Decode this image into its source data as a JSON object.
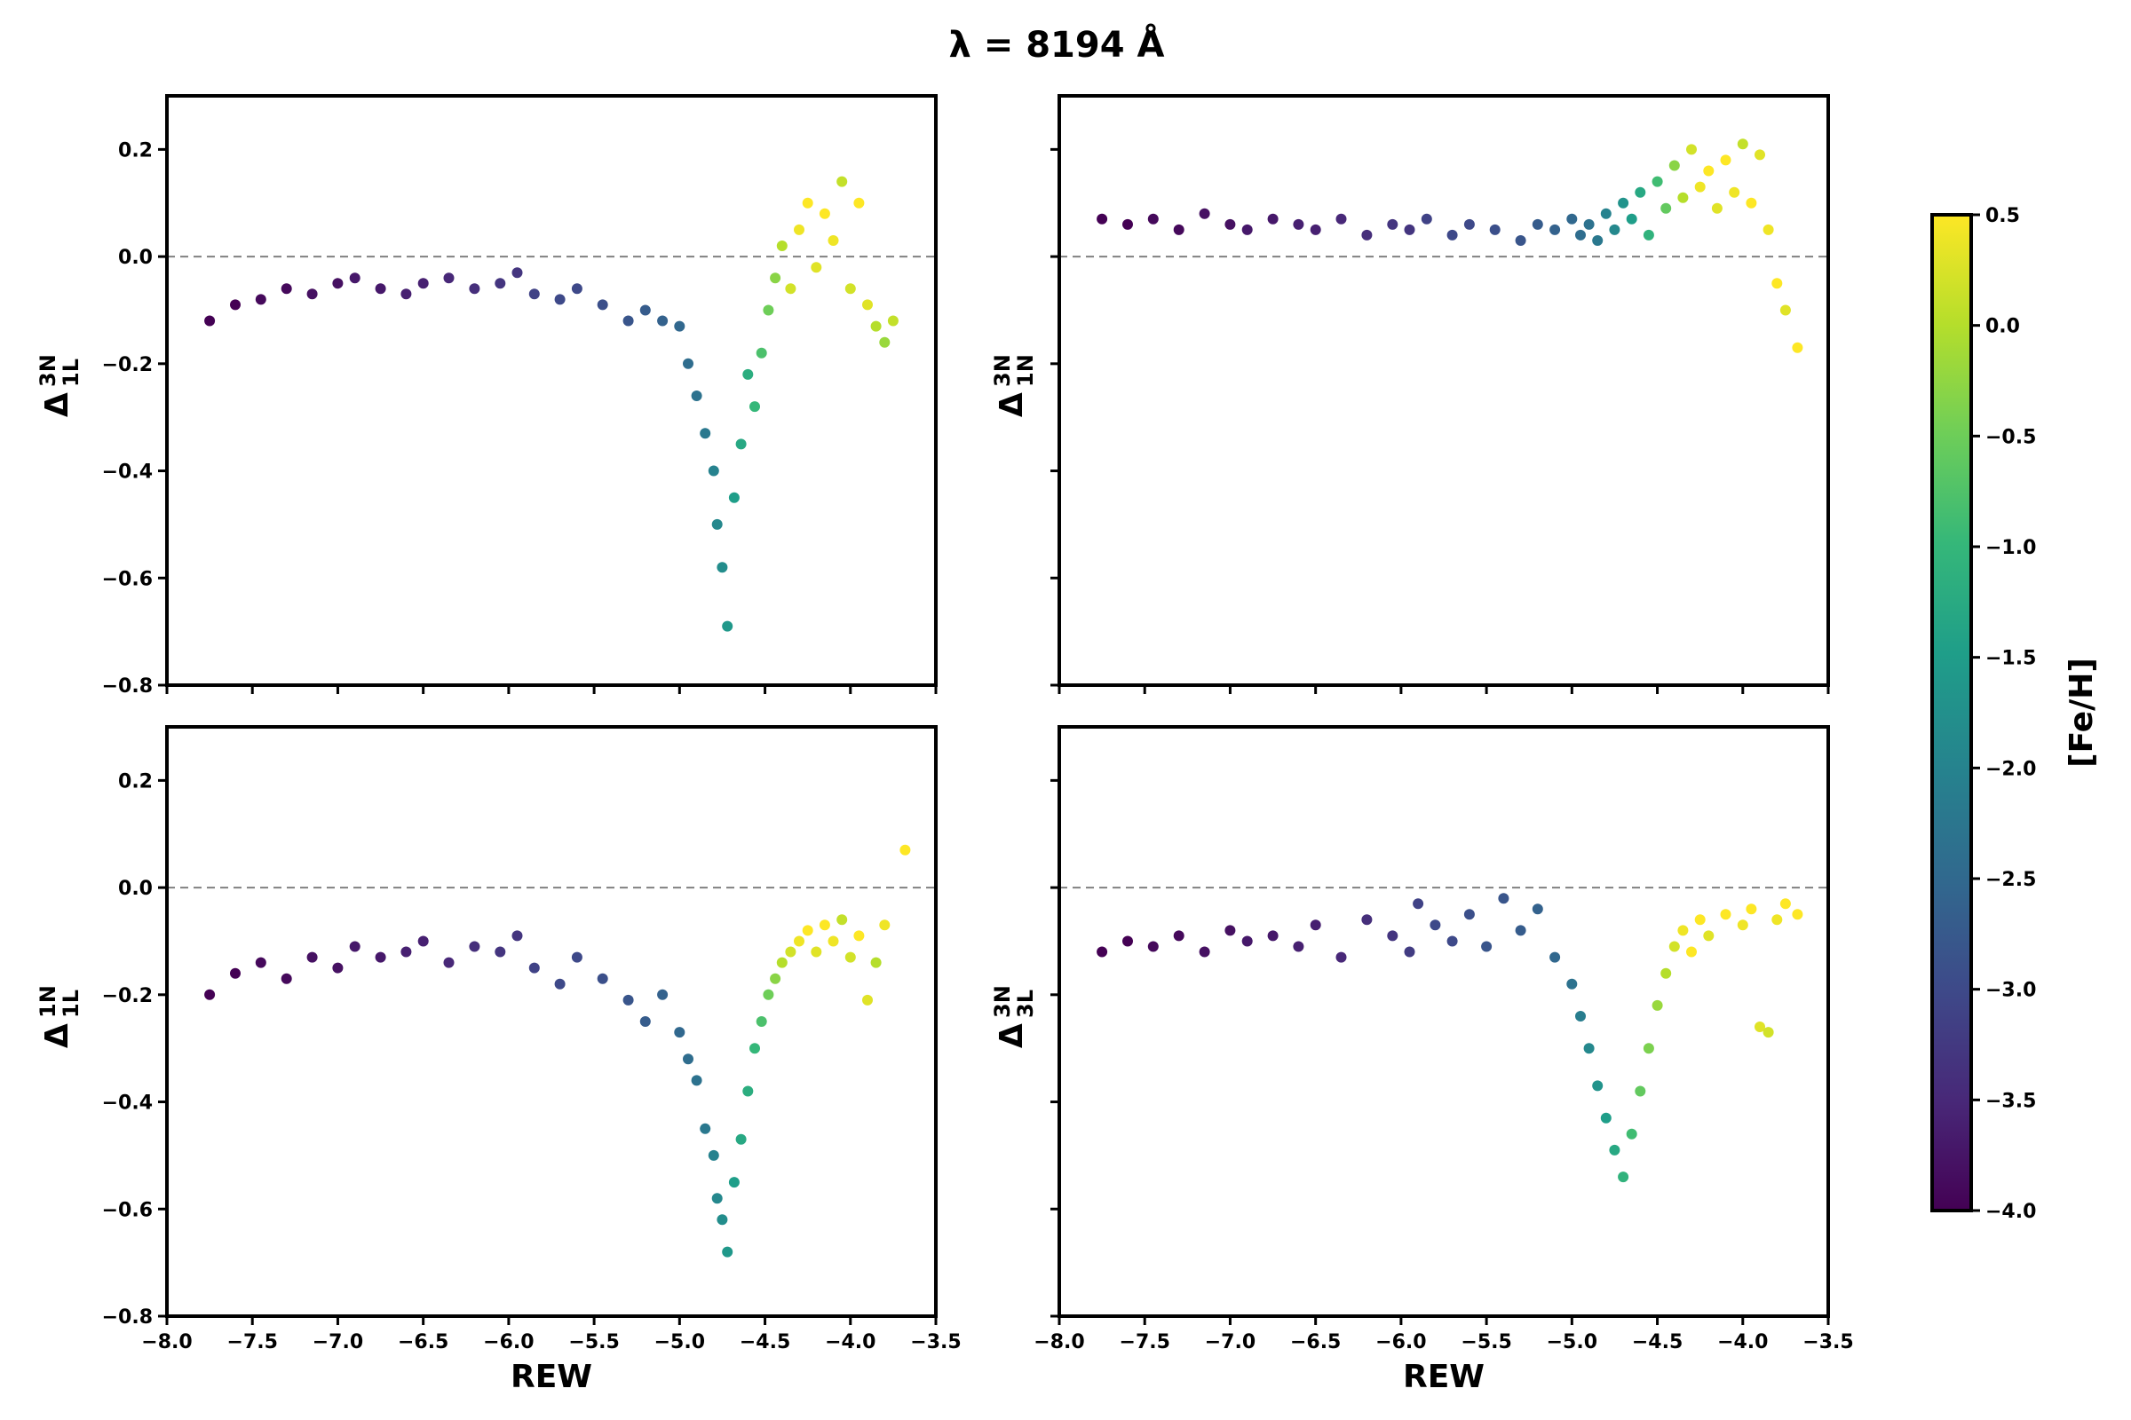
{
  "figure": {
    "title": "λ = 8194 Å"
  },
  "colorbar": {
    "label": "[Fe/H]",
    "range": [
      -4.0,
      0.5
    ],
    "ticks": [
      "0.5",
      "0.0",
      "−0.5",
      "−1.0",
      "−1.5",
      "−2.0",
      "−2.5",
      "−3.0",
      "−3.5",
      "−4.0"
    ],
    "colormap": "viridis",
    "colors": [
      "#440154",
      "#482878",
      "#3e4989",
      "#31688e",
      "#26828e",
      "#1f9e89",
      "#35b779",
      "#6ece58",
      "#b5de2b",
      "#fde725"
    ]
  },
  "chart_data": [
    {
      "type": "scatter",
      "panel": "top-left",
      "ylabel": {
        "base": "Δ",
        "sup": "3N",
        "sub": "1L"
      },
      "xlabel": "",
      "xlim": [
        -8.0,
        -3.5
      ],
      "ylim": [
        -0.8,
        0.3
      ],
      "x_ticks": [
        -8.0,
        -7.5,
        -7.0,
        -6.5,
        -6.0,
        -5.5,
        -5.0,
        -4.5,
        -4.0,
        -3.5
      ],
      "y_ticks": [
        "0.2",
        "0.0",
        "−0.2",
        "−0.4",
        "−0.6",
        "−0.8"
      ],
      "reference_line": 0.0,
      "color_by": "[Fe/H]",
      "points": [
        [
          -7.75,
          -0.12,
          -4.0
        ],
        [
          -7.6,
          -0.09,
          -4.0
        ],
        [
          -7.45,
          -0.08,
          -3.9
        ],
        [
          -7.3,
          -0.06,
          -3.9
        ],
        [
          -7.15,
          -0.07,
          -3.8
        ],
        [
          -7.0,
          -0.05,
          -3.8
        ],
        [
          -6.9,
          -0.04,
          -3.7
        ],
        [
          -6.75,
          -0.06,
          -3.7
        ],
        [
          -6.6,
          -0.07,
          -3.6
        ],
        [
          -6.5,
          -0.05,
          -3.6
        ],
        [
          -6.35,
          -0.04,
          -3.5
        ],
        [
          -6.2,
          -0.06,
          -3.4
        ],
        [
          -6.05,
          -0.05,
          -3.3
        ],
        [
          -5.95,
          -0.03,
          -3.3
        ],
        [
          -5.85,
          -0.07,
          -3.1
        ],
        [
          -5.7,
          -0.08,
          -3.0
        ],
        [
          -5.6,
          -0.06,
          -3.0
        ],
        [
          -5.45,
          -0.09,
          -2.9
        ],
        [
          -5.3,
          -0.12,
          -2.8
        ],
        [
          -5.2,
          -0.1,
          -2.7
        ],
        [
          -5.1,
          -0.12,
          -2.6
        ],
        [
          -5.0,
          -0.13,
          -2.5
        ],
        [
          -4.95,
          -0.2,
          -2.4
        ],
        [
          -4.9,
          -0.26,
          -2.3
        ],
        [
          -4.85,
          -0.33,
          -2.2
        ],
        [
          -4.8,
          -0.4,
          -2.0
        ],
        [
          -4.78,
          -0.5,
          -1.9
        ],
        [
          -4.75,
          -0.58,
          -1.8
        ],
        [
          -4.72,
          -0.69,
          -1.6
        ],
        [
          -4.68,
          -0.45,
          -1.5
        ],
        [
          -4.64,
          -0.35,
          -1.3
        ],
        [
          -4.6,
          -0.22,
          -1.2
        ],
        [
          -4.56,
          -0.28,
          -1.0
        ],
        [
          -4.52,
          -0.18,
          -0.8
        ],
        [
          -4.48,
          -0.1,
          -0.5
        ],
        [
          -4.44,
          -0.04,
          -0.3
        ],
        [
          -4.4,
          0.02,
          0.0
        ],
        [
          -4.35,
          -0.06,
          0.2
        ],
        [
          -4.3,
          0.05,
          0.4
        ],
        [
          -4.25,
          0.1,
          0.5
        ],
        [
          -4.2,
          -0.02,
          0.3
        ],
        [
          -4.15,
          0.08,
          0.5
        ],
        [
          -4.1,
          0.03,
          0.4
        ],
        [
          -4.05,
          0.14,
          0.1
        ],
        [
          -4.0,
          -0.06,
          0.2
        ],
        [
          -3.95,
          0.1,
          0.5
        ],
        [
          -3.9,
          -0.09,
          0.3
        ],
        [
          -3.85,
          -0.13,
          0.0
        ],
        [
          -3.8,
          -0.16,
          -0.2
        ],
        [
          -3.75,
          -0.12,
          0.1
        ]
      ]
    },
    {
      "type": "scatter",
      "panel": "top-right",
      "ylabel": {
        "base": "Δ",
        "sup": "3N",
        "sub": "1N"
      },
      "xlabel": "",
      "xlim": [
        -8.0,
        -3.5
      ],
      "ylim": [
        -0.8,
        0.3
      ],
      "x_ticks": [
        -8.0,
        -7.5,
        -7.0,
        -6.5,
        -6.0,
        -5.5,
        -5.0,
        -4.5,
        -4.0,
        -3.5
      ],
      "reference_line": 0.0,
      "color_by": "[Fe/H]",
      "points": [
        [
          -7.75,
          0.07,
          -4.0
        ],
        [
          -7.6,
          0.06,
          -4.0
        ],
        [
          -7.45,
          0.07,
          -3.9
        ],
        [
          -7.3,
          0.05,
          -3.9
        ],
        [
          -7.15,
          0.08,
          -3.8
        ],
        [
          -7.0,
          0.06,
          -3.8
        ],
        [
          -6.9,
          0.05,
          -3.7
        ],
        [
          -6.75,
          0.07,
          -3.7
        ],
        [
          -6.6,
          0.06,
          -3.6
        ],
        [
          -6.5,
          0.05,
          -3.6
        ],
        [
          -6.35,
          0.07,
          -3.5
        ],
        [
          -6.2,
          0.04,
          -3.4
        ],
        [
          -6.05,
          0.06,
          -3.3
        ],
        [
          -5.95,
          0.05,
          -3.3
        ],
        [
          -5.85,
          0.07,
          -3.1
        ],
        [
          -5.7,
          0.04,
          -3.0
        ],
        [
          -5.6,
          0.06,
          -3.0
        ],
        [
          -5.45,
          0.05,
          -2.9
        ],
        [
          -5.3,
          0.03,
          -2.8
        ],
        [
          -5.2,
          0.06,
          -2.7
        ],
        [
          -5.1,
          0.05,
          -2.6
        ],
        [
          -5.0,
          0.07,
          -2.5
        ],
        [
          -4.95,
          0.04,
          -2.4
        ],
        [
          -4.9,
          0.06,
          -2.3
        ],
        [
          -4.85,
          0.03,
          -2.2
        ],
        [
          -4.8,
          0.08,
          -2.0
        ],
        [
          -4.75,
          0.05,
          -1.9
        ],
        [
          -4.7,
          0.1,
          -1.7
        ],
        [
          -4.65,
          0.07,
          -1.5
        ],
        [
          -4.6,
          0.12,
          -1.3
        ],
        [
          -4.55,
          0.04,
          -1.1
        ],
        [
          -4.5,
          0.14,
          -0.9
        ],
        [
          -4.45,
          0.09,
          -0.6
        ],
        [
          -4.4,
          0.17,
          -0.3
        ],
        [
          -4.35,
          0.11,
          0.0
        ],
        [
          -4.3,
          0.2,
          0.2
        ],
        [
          -4.25,
          0.13,
          0.4
        ],
        [
          -4.2,
          0.16,
          0.5
        ],
        [
          -4.15,
          0.09,
          0.3
        ],
        [
          -4.1,
          0.18,
          0.5
        ],
        [
          -4.05,
          0.12,
          0.4
        ],
        [
          -4.0,
          0.21,
          0.1
        ],
        [
          -3.95,
          0.1,
          0.5
        ],
        [
          -3.9,
          0.19,
          0.3
        ],
        [
          -3.85,
          0.05,
          0.4
        ],
        [
          -3.8,
          -0.05,
          0.5
        ],
        [
          -3.75,
          -0.1,
          0.3
        ],
        [
          -3.68,
          -0.17,
          0.5
        ]
      ]
    },
    {
      "type": "scatter",
      "panel": "bottom-left",
      "ylabel": {
        "base": "Δ",
        "sup": "1N",
        "sub": "1L"
      },
      "xlabel": "REW",
      "xlim": [
        -8.0,
        -3.5
      ],
      "ylim": [
        -0.8,
        0.3
      ],
      "x_ticks": [
        -8.0,
        -7.5,
        -7.0,
        -6.5,
        -6.0,
        -5.5,
        -5.0,
        -4.5,
        -4.0,
        -3.5
      ],
      "x_tick_labels": [
        "−8.0",
        "−7.5",
        "−7.0",
        "−6.5",
        "−6.0",
        "−5.5",
        "−5.0",
        "−4.5",
        "−4.0",
        "−3.5"
      ],
      "y_ticks": [
        "0.2",
        "0.0",
        "−0.2",
        "−0.4",
        "−0.6",
        "−0.8"
      ],
      "reference_line": 0.0,
      "color_by": "[Fe/H]",
      "points": [
        [
          -7.75,
          -0.2,
          -4.0
        ],
        [
          -7.6,
          -0.16,
          -4.0
        ],
        [
          -7.45,
          -0.14,
          -3.9
        ],
        [
          -7.3,
          -0.17,
          -3.9
        ],
        [
          -7.15,
          -0.13,
          -3.8
        ],
        [
          -7.0,
          -0.15,
          -3.8
        ],
        [
          -6.9,
          -0.11,
          -3.7
        ],
        [
          -6.75,
          -0.13,
          -3.7
        ],
        [
          -6.6,
          -0.12,
          -3.6
        ],
        [
          -6.5,
          -0.1,
          -3.6
        ],
        [
          -6.35,
          -0.14,
          -3.5
        ],
        [
          -6.2,
          -0.11,
          -3.4
        ],
        [
          -6.05,
          -0.12,
          -3.3
        ],
        [
          -5.95,
          -0.09,
          -3.3
        ],
        [
          -5.85,
          -0.15,
          -3.1
        ],
        [
          -5.7,
          -0.18,
          -3.0
        ],
        [
          -5.6,
          -0.13,
          -3.0
        ],
        [
          -5.45,
          -0.17,
          -2.9
        ],
        [
          -5.3,
          -0.21,
          -2.8
        ],
        [
          -5.2,
          -0.25,
          -2.7
        ],
        [
          -5.1,
          -0.2,
          -2.6
        ],
        [
          -5.0,
          -0.27,
          -2.5
        ],
        [
          -4.95,
          -0.32,
          -2.4
        ],
        [
          -4.9,
          -0.36,
          -2.3
        ],
        [
          -4.85,
          -0.45,
          -2.2
        ],
        [
          -4.8,
          -0.5,
          -2.0
        ],
        [
          -4.78,
          -0.58,
          -1.9
        ],
        [
          -4.75,
          -0.62,
          -1.8
        ],
        [
          -4.72,
          -0.68,
          -1.6
        ],
        [
          -4.68,
          -0.55,
          -1.5
        ],
        [
          -4.64,
          -0.47,
          -1.3
        ],
        [
          -4.6,
          -0.38,
          -1.2
        ],
        [
          -4.56,
          -0.3,
          -1.0
        ],
        [
          -4.52,
          -0.25,
          -0.8
        ],
        [
          -4.48,
          -0.2,
          -0.5
        ],
        [
          -4.44,
          -0.17,
          -0.3
        ],
        [
          -4.4,
          -0.14,
          0.0
        ],
        [
          -4.35,
          -0.12,
          0.2
        ],
        [
          -4.3,
          -0.1,
          0.4
        ],
        [
          -4.25,
          -0.08,
          0.5
        ],
        [
          -4.2,
          -0.12,
          0.3
        ],
        [
          -4.15,
          -0.07,
          0.5
        ],
        [
          -4.1,
          -0.1,
          0.4
        ],
        [
          -4.05,
          -0.06,
          0.1
        ],
        [
          -4.0,
          -0.13,
          0.2
        ],
        [
          -3.95,
          -0.09,
          0.5
        ],
        [
          -3.9,
          -0.21,
          0.3
        ],
        [
          -3.85,
          -0.14,
          0.0
        ],
        [
          -3.8,
          -0.07,
          0.4
        ],
        [
          -3.68,
          0.07,
          0.5
        ]
      ]
    },
    {
      "type": "scatter",
      "panel": "bottom-right",
      "ylabel": {
        "base": "Δ",
        "sup": "3N",
        "sub": "3L"
      },
      "xlabel": "REW",
      "xlim": [
        -8.0,
        -3.5
      ],
      "ylim": [
        -0.8,
        0.3
      ],
      "x_ticks": [
        -8.0,
        -7.5,
        -7.0,
        -6.5,
        -6.0,
        -5.5,
        -5.0,
        -4.5,
        -4.0,
        -3.5
      ],
      "x_tick_labels": [
        "−8.0",
        "−7.5",
        "−7.0",
        "−6.5",
        "−6.0",
        "−5.5",
        "−5.0",
        "−4.5",
        "−4.0",
        "−3.5"
      ],
      "reference_line": 0.0,
      "color_by": "[Fe/H]",
      "points": [
        [
          -7.75,
          -0.12,
          -4.0
        ],
        [
          -7.6,
          -0.1,
          -4.0
        ],
        [
          -7.45,
          -0.11,
          -3.9
        ],
        [
          -7.3,
          -0.09,
          -3.9
        ],
        [
          -7.15,
          -0.12,
          -3.8
        ],
        [
          -7.0,
          -0.08,
          -3.8
        ],
        [
          -6.9,
          -0.1,
          -3.7
        ],
        [
          -6.75,
          -0.09,
          -3.7
        ],
        [
          -6.6,
          -0.11,
          -3.6
        ],
        [
          -6.5,
          -0.07,
          -3.6
        ],
        [
          -6.35,
          -0.13,
          -3.5
        ],
        [
          -6.2,
          -0.06,
          -3.4
        ],
        [
          -6.05,
          -0.09,
          -3.3
        ],
        [
          -5.95,
          -0.12,
          -3.2
        ],
        [
          -5.9,
          -0.03,
          -3.1
        ],
        [
          -5.8,
          -0.07,
          -3.0
        ],
        [
          -5.7,
          -0.1,
          -3.0
        ],
        [
          -5.6,
          -0.05,
          -2.9
        ],
        [
          -5.5,
          -0.11,
          -2.8
        ],
        [
          -5.4,
          -0.02,
          -2.8
        ],
        [
          -5.3,
          -0.08,
          -2.7
        ],
        [
          -5.2,
          -0.04,
          -2.6
        ],
        [
          -5.1,
          -0.13,
          -2.5
        ],
        [
          -5.0,
          -0.18,
          -2.3
        ],
        [
          -4.95,
          -0.24,
          -2.1
        ],
        [
          -4.9,
          -0.3,
          -1.9
        ],
        [
          -4.85,
          -0.37,
          -1.7
        ],
        [
          -4.8,
          -0.43,
          -1.5
        ],
        [
          -4.75,
          -0.49,
          -1.3
        ],
        [
          -4.7,
          -0.54,
          -1.1
        ],
        [
          -4.65,
          -0.46,
          -0.9
        ],
        [
          -4.6,
          -0.38,
          -0.6
        ],
        [
          -4.55,
          -0.3,
          -0.4
        ],
        [
          -4.5,
          -0.22,
          -0.2
        ],
        [
          -4.45,
          -0.16,
          0.0
        ],
        [
          -4.4,
          -0.11,
          0.2
        ],
        [
          -4.35,
          -0.08,
          0.4
        ],
        [
          -4.3,
          -0.12,
          0.5
        ],
        [
          -4.25,
          -0.06,
          0.5
        ],
        [
          -4.2,
          -0.09,
          0.3
        ],
        [
          -4.1,
          -0.05,
          0.5
        ],
        [
          -4.0,
          -0.07,
          0.4
        ],
        [
          -3.95,
          -0.04,
          0.5
        ],
        [
          -3.9,
          -0.26,
          0.3
        ],
        [
          -3.85,
          -0.27,
          0.2
        ],
        [
          -3.8,
          -0.06,
          0.4
        ],
        [
          -3.75,
          -0.03,
          0.5
        ],
        [
          -3.68,
          -0.05,
          0.5
        ]
      ]
    }
  ]
}
